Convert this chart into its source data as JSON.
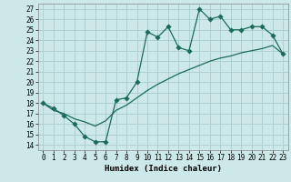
{
  "xlabel": "Humidex (Indice chaleur)",
  "bg_color": "#cce8e8",
  "grid_color": "#aacccc",
  "line_color": "#1a6b5a",
  "xlim": [
    -0.5,
    23.5
  ],
  "ylim": [
    13.5,
    27.5
  ],
  "yticks": [
    14,
    15,
    16,
    17,
    18,
    19,
    20,
    21,
    22,
    23,
    24,
    25,
    26,
    27
  ],
  "xticks": [
    0,
    1,
    2,
    3,
    4,
    5,
    6,
    7,
    8,
    9,
    10,
    11,
    12,
    13,
    14,
    15,
    16,
    17,
    18,
    19,
    20,
    21,
    22,
    23
  ],
  "line1_x": [
    0,
    1,
    2,
    3,
    4,
    5,
    6,
    7,
    8,
    9,
    10,
    11,
    12,
    13,
    14,
    15,
    16,
    17,
    18,
    19,
    20,
    21,
    22,
    23
  ],
  "line1_y": [
    18.0,
    17.5,
    16.8,
    16.0,
    14.8,
    14.3,
    14.3,
    18.3,
    18.5,
    20.0,
    24.8,
    24.3,
    25.3,
    23.3,
    23.0,
    27.0,
    26.0,
    26.3,
    25.0,
    25.0,
    25.3,
    25.3,
    24.5,
    22.7
  ],
  "line2_x": [
    0,
    1,
    2,
    3,
    4,
    5,
    6,
    7,
    8,
    9,
    10,
    11,
    12,
    13,
    14,
    15,
    16,
    17,
    18,
    19,
    20,
    21,
    22,
    23
  ],
  "line2_y": [
    18.0,
    17.3,
    17.0,
    16.5,
    16.2,
    15.8,
    16.3,
    17.3,
    17.8,
    18.5,
    19.2,
    19.8,
    20.3,
    20.8,
    21.2,
    21.6,
    22.0,
    22.3,
    22.5,
    22.8,
    23.0,
    23.2,
    23.5,
    22.7
  ],
  "markersize": 2.8,
  "linewidth": 0.9,
  "tick_fontsize": 5.5,
  "xlabel_fontsize": 6.5
}
